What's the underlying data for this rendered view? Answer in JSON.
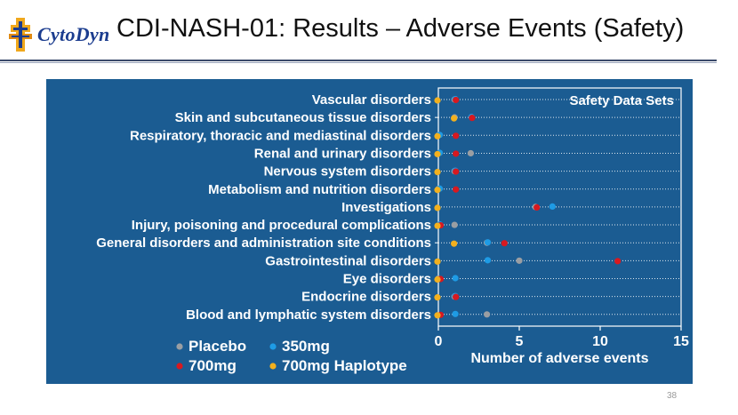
{
  "header": {
    "logo_text": "CytoDyn",
    "title": "CDI-NASH-01: Results – Adverse Events (Safety)"
  },
  "footer": {
    "page_number": "38"
  },
  "colors": {
    "chart_bg": "#1b5c92",
    "placebo": "#9a9ea3",
    "350mg": "#1e9be5",
    "700mg": "#d71920",
    "700mg_haplotype": "#f2b01e"
  },
  "chart_data": {
    "type": "scatter",
    "title": "",
    "legend_title": "Safety Data Sets",
    "xlabel": "Number of adverse events",
    "ylabel": "",
    "xlim": [
      0,
      15
    ],
    "xticks": [
      0,
      5,
      10,
      15
    ],
    "grid": "horizontal dotted",
    "legend_position": "bottom-left",
    "categories": [
      "Vascular disorders",
      "Skin and subcutaneous tissue disorders",
      "Respiratory, thoracic and mediastinal disorders",
      "Renal and urinary disorders",
      "Nervous system disorders",
      "Metabolism and nutrition disorders",
      "Investigations",
      "Injury, poisoning and procedural complications",
      "General disorders and administration site conditions",
      "Gastrointestinal disorders",
      "Eye disorders",
      "Endocrine disorders",
      "Blood and lymphatic system disorders"
    ],
    "series": [
      {
        "name": "Placebo",
        "color": "#9a9ea3",
        "values": [
          1,
          1,
          0,
          2,
          1,
          0,
          6,
          1,
          3,
          5,
          0,
          1,
          3
        ]
      },
      {
        "name": "350mg",
        "color": "#1e9be5",
        "values": [
          1,
          2,
          0,
          0,
          1,
          0,
          7,
          0,
          3,
          3,
          1,
          1,
          1
        ]
      },
      {
        "name": "700mg",
        "color": "#d71920",
        "values": [
          1,
          2,
          1,
          1,
          1,
          1,
          6,
          0,
          4,
          11,
          0,
          1,
          0
        ]
      },
      {
        "name": "700mg Haplotype",
        "color": "#f2b01e",
        "values": [
          0,
          1,
          0,
          0,
          0,
          0,
          0,
          0,
          1,
          0,
          0,
          0,
          0
        ]
      }
    ]
  }
}
